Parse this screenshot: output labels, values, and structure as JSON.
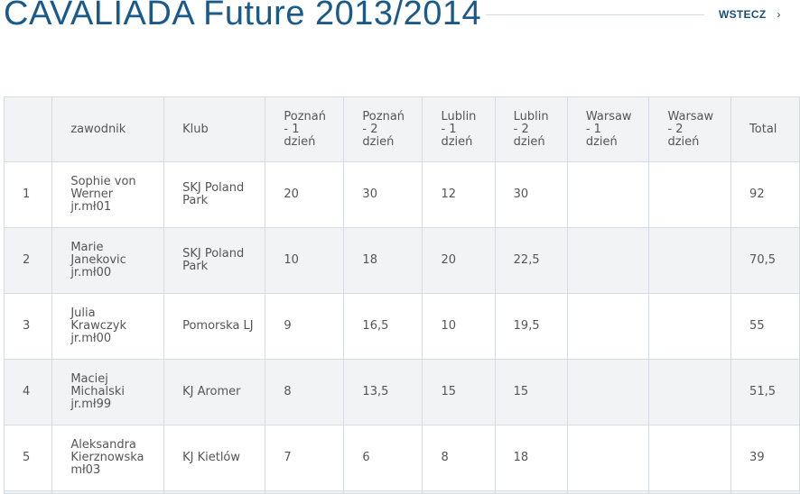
{
  "header": {
    "title": "CAVALIADA Future 2013/2014",
    "back_label": "WSTECZ",
    "back_chevron": "›"
  },
  "table": {
    "columns": [
      "",
      "zawodnik",
      "Klub",
      "Poznań\n- 1\ndzień",
      "Poznań\n- 2\ndzień",
      "Lublin\n- 1\ndzień",
      "Lublin\n- 2\ndzień",
      "Warsaw\n- 1\ndzień",
      "Warsaw\n- 2\ndzień",
      "Total"
    ],
    "rows": [
      [
        "1",
        "Sophie von\nWerner\njr.mł01",
        "SKJ Poland\nPark",
        "20",
        "30",
        "12",
        "30",
        "",
        "",
        "92"
      ],
      [
        "2",
        "Marie\nJanekovic\njr.mł00",
        "SKJ Poland\nPark",
        "10",
        "18",
        "20",
        "22,5",
        "",
        "",
        "70,5"
      ],
      [
        "3",
        "Julia\nKrawczyk\njr.mł00",
        "Pomorska LJ",
        "9",
        "16,5",
        "10",
        "19,5",
        "",
        "",
        "55"
      ],
      [
        "4",
        "Maciej\nMichalski\njr.mł99",
        "KJ Aromer",
        "8",
        "13,5",
        "15",
        "15",
        "",
        "",
        "51,5"
      ],
      [
        "5",
        "Aleksandra\nKierznowska\nmł03",
        "KJ Kietlów",
        "7",
        "6",
        "8",
        "18",
        "",
        "",
        "39"
      ]
    ]
  }
}
